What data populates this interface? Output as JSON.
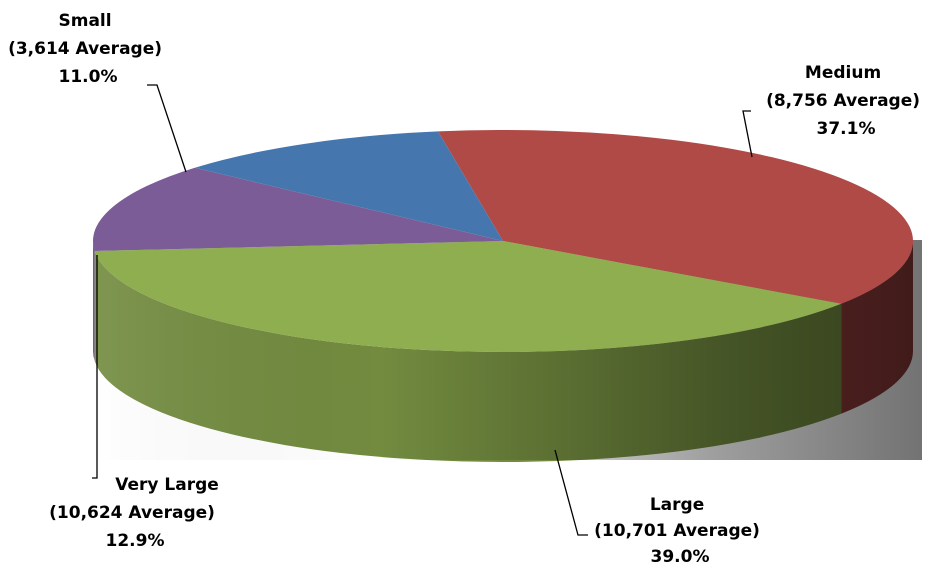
{
  "chart_data": {
    "type": "pie",
    "style": "3d",
    "legend": "none",
    "slices": [
      {
        "name": "Medium",
        "average_label": "(8,756 Average)",
        "percent_label": "37.1%",
        "value": 37.1,
        "color": "#B04A47"
      },
      {
        "name": "Large",
        "average_label": "(10,701 Average)",
        "percent_label": "39.0%",
        "value": 39.0,
        "color": "#8FAE4F"
      },
      {
        "name": "Very Large",
        "average_label": "(10,624 Average)",
        "percent_label": "12.9%",
        "value": 12.9,
        "color": "#7B5C96"
      },
      {
        "name": "Small",
        "average_label": "(3,614 Average)",
        "percent_label": "11.0%",
        "value": 11.0,
        "color": "#4576AE"
      }
    ]
  }
}
